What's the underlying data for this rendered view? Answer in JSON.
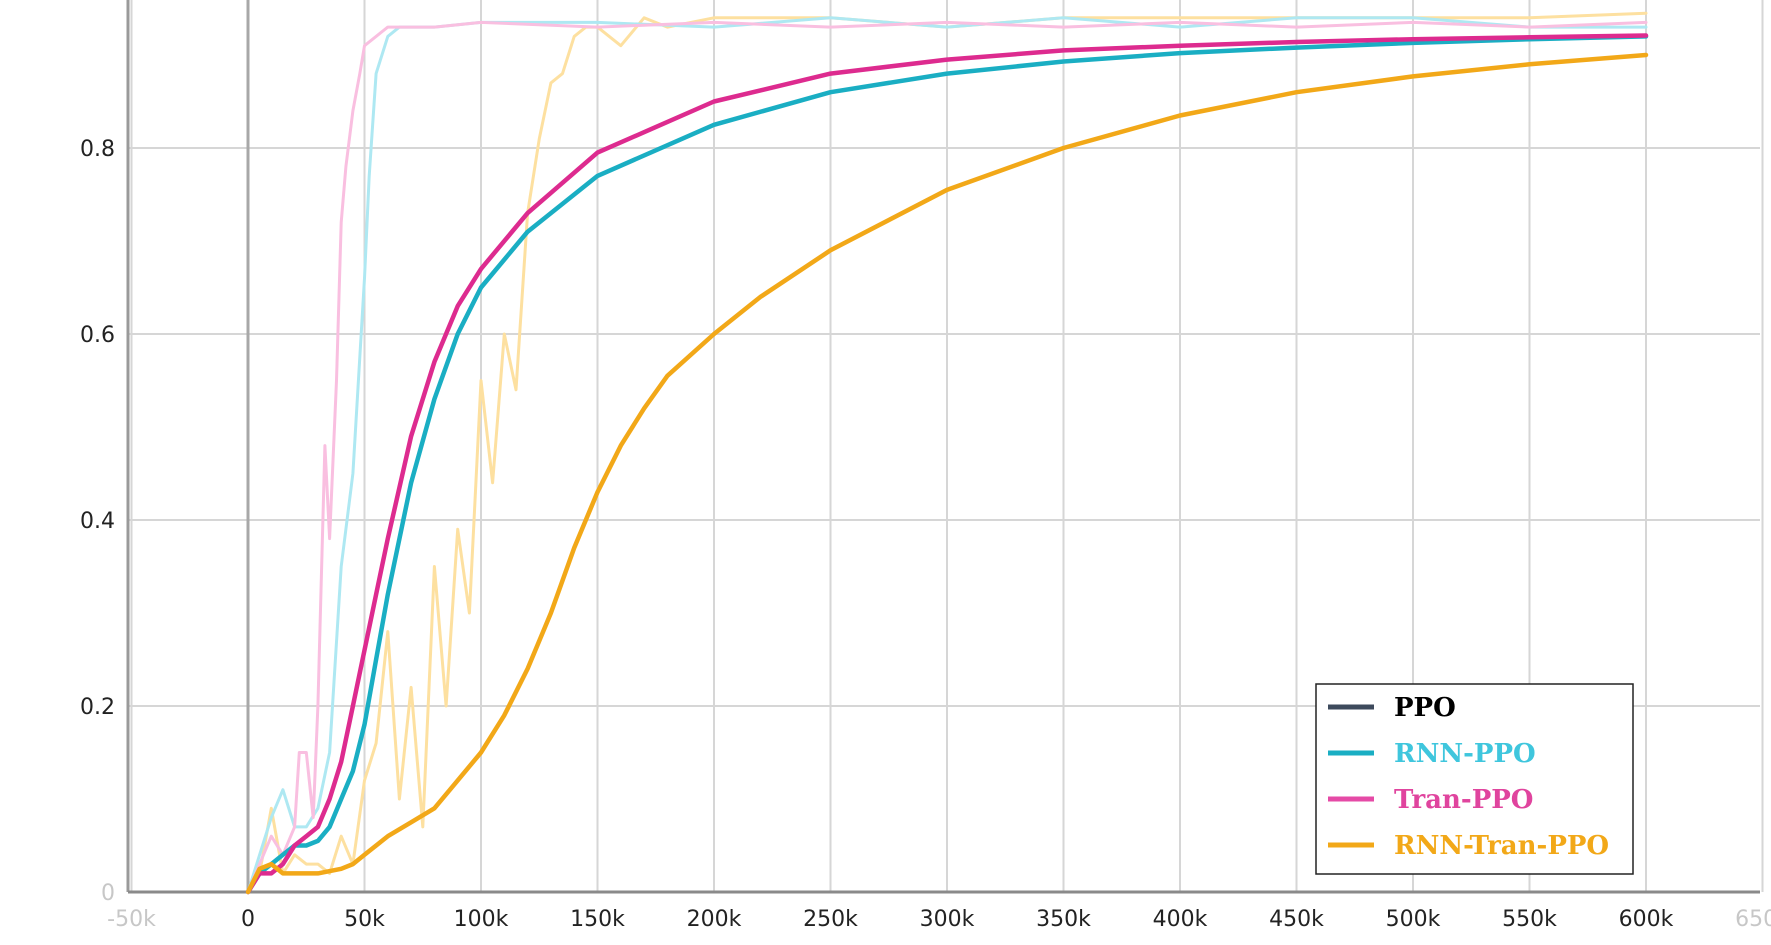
{
  "chart_data": {
    "type": "line",
    "title": "",
    "xlabel": "",
    "ylabel": "",
    "xlim": [
      -50000,
      650000
    ],
    "ylim": [
      0,
      0.955
    ],
    "grid": true,
    "legend_position": "bottom-right",
    "x_ticks": [
      {
        "value": -50000,
        "label": "-50k",
        "faint": true
      },
      {
        "value": 0,
        "label": "0"
      },
      {
        "value": 50000,
        "label": "50k"
      },
      {
        "value": 100000,
        "label": "100k"
      },
      {
        "value": 150000,
        "label": "150k"
      },
      {
        "value": 200000,
        "label": "200k"
      },
      {
        "value": 250000,
        "label": "250k"
      },
      {
        "value": 300000,
        "label": "300k"
      },
      {
        "value": 350000,
        "label": "350k"
      },
      {
        "value": 400000,
        "label": "400k"
      },
      {
        "value": 450000,
        "label": "450k"
      },
      {
        "value": 500000,
        "label": "500k"
      },
      {
        "value": 550000,
        "label": "550k"
      },
      {
        "value": 600000,
        "label": "600k"
      },
      {
        "value": 650000,
        "label": "650k",
        "faint": true
      }
    ],
    "y_ticks": [
      {
        "value": 0,
        "label": "0",
        "faint": true
      },
      {
        "value": 0.2,
        "label": "0.2"
      },
      {
        "value": 0.4,
        "label": "0.4"
      },
      {
        "value": 0.6,
        "label": "0.6"
      },
      {
        "value": 0.8,
        "label": "0.8"
      }
    ],
    "legend": [
      {
        "label": "PPO",
        "color": "#3d4a5c",
        "text_color": "#000000"
      },
      {
        "label": "RNN-PPO",
        "color": "#1aaec3",
        "text_color": "#3fc6dd"
      },
      {
        "label": "Tran-PPO",
        "color": "#e54aa6",
        "text_color": "#e0449e"
      },
      {
        "label": "RNN-Tran-PPO",
        "color": "#f2a818",
        "text_color": "#f2a818"
      }
    ],
    "series": [
      {
        "name": "RNN-Tran-PPO",
        "role": "raw",
        "color": "#fde0a0",
        "x": [
          0,
          5000,
          10000,
          15000,
          20000,
          25000,
          30000,
          35000,
          40000,
          45000,
          50000,
          55000,
          60000,
          65000,
          70000,
          75000,
          80000,
          85000,
          90000,
          95000,
          100000,
          105000,
          110000,
          115000,
          120000,
          125000,
          130000,
          135000,
          140000,
          145000,
          150000,
          160000,
          170000,
          180000,
          200000,
          250000,
          300000,
          350000,
          400000,
          450000,
          500000,
          550000,
          600000
        ],
        "y": [
          0.0,
          0.02,
          0.09,
          0.02,
          0.04,
          0.03,
          0.03,
          0.02,
          0.06,
          0.03,
          0.12,
          0.16,
          0.28,
          0.1,
          0.22,
          0.07,
          0.35,
          0.2,
          0.39,
          0.3,
          0.55,
          0.44,
          0.6,
          0.54,
          0.73,
          0.81,
          0.87,
          0.88,
          0.92,
          0.93,
          0.93,
          0.91,
          0.94,
          0.93,
          0.94,
          0.94,
          0.93,
          0.94,
          0.94,
          0.94,
          0.94,
          0.94,
          0.945
        ]
      },
      {
        "name": "RNN-PPO",
        "role": "raw",
        "color": "#aee8f2",
        "x": [
          0,
          5000,
          10000,
          15000,
          20000,
          25000,
          30000,
          35000,
          40000,
          45000,
          50000,
          52000,
          55000,
          60000,
          65000,
          70000,
          80000,
          100000,
          150000,
          200000,
          250000,
          300000,
          350000,
          400000,
          450000,
          500000,
          550000,
          600000
        ],
        "y": [
          0.0,
          0.04,
          0.08,
          0.11,
          0.07,
          0.07,
          0.09,
          0.15,
          0.35,
          0.45,
          0.66,
          0.77,
          0.88,
          0.92,
          0.93,
          0.93,
          0.93,
          0.935,
          0.935,
          0.93,
          0.94,
          0.93,
          0.94,
          0.93,
          0.94,
          0.94,
          0.93,
          0.93
        ]
      },
      {
        "name": "Tran-PPO",
        "role": "raw",
        "color": "#f9bfe0",
        "x": [
          0,
          5000,
          10000,
          15000,
          20000,
          22000,
          25000,
          28000,
          30000,
          33000,
          35000,
          38000,
          40000,
          42000,
          45000,
          48000,
          50000,
          55000,
          60000,
          80000,
          100000,
          150000,
          200000,
          250000,
          300000,
          350000,
          400000,
          450000,
          500000,
          550000,
          600000
        ],
        "y": [
          0.0,
          0.03,
          0.06,
          0.04,
          0.07,
          0.15,
          0.15,
          0.08,
          0.2,
          0.48,
          0.38,
          0.55,
          0.72,
          0.78,
          0.84,
          0.88,
          0.91,
          0.92,
          0.93,
          0.93,
          0.935,
          0.93,
          0.935,
          0.93,
          0.935,
          0.93,
          0.935,
          0.93,
          0.935,
          0.93,
          0.935
        ]
      },
      {
        "name": "RNN-PPO",
        "role": "smoothed",
        "color": "#1aaec3",
        "x": [
          0,
          5000,
          10000,
          15000,
          20000,
          25000,
          30000,
          35000,
          40000,
          45000,
          50000,
          55000,
          60000,
          70000,
          80000,
          90000,
          100000,
          120000,
          150000,
          200000,
          250000,
          300000,
          350000,
          400000,
          450000,
          500000,
          550000,
          600000
        ],
        "y": [
          0.0,
          0.02,
          0.03,
          0.04,
          0.05,
          0.05,
          0.055,
          0.07,
          0.1,
          0.13,
          0.18,
          0.25,
          0.32,
          0.44,
          0.53,
          0.6,
          0.65,
          0.71,
          0.77,
          0.825,
          0.86,
          0.88,
          0.893,
          0.902,
          0.908,
          0.913,
          0.917,
          0.92
        ]
      },
      {
        "name": "Tran-PPO",
        "role": "smoothed",
        "color": "#dd2b8f",
        "x": [
          0,
          5000,
          10000,
          15000,
          20000,
          25000,
          30000,
          35000,
          40000,
          45000,
          50000,
          55000,
          60000,
          70000,
          80000,
          90000,
          100000,
          120000,
          150000,
          200000,
          250000,
          300000,
          350000,
          400000,
          450000,
          500000,
          550000,
          600000
        ],
        "y": [
          0.0,
          0.02,
          0.02,
          0.03,
          0.05,
          0.06,
          0.07,
          0.1,
          0.14,
          0.2,
          0.26,
          0.32,
          0.38,
          0.49,
          0.57,
          0.63,
          0.67,
          0.73,
          0.795,
          0.85,
          0.88,
          0.895,
          0.905,
          0.91,
          0.914,
          0.917,
          0.919,
          0.921
        ]
      },
      {
        "name": "RNN-Tran-PPO",
        "role": "smoothed",
        "color": "#f2a818",
        "x": [
          0,
          5000,
          10000,
          15000,
          20000,
          25000,
          30000,
          40000,
          45000,
          50000,
          60000,
          70000,
          80000,
          90000,
          100000,
          110000,
          120000,
          130000,
          140000,
          150000,
          160000,
          170000,
          180000,
          200000,
          220000,
          250000,
          300000,
          350000,
          400000,
          450000,
          500000,
          550000,
          600000
        ],
        "y": [
          0.0,
          0.025,
          0.03,
          0.02,
          0.02,
          0.02,
          0.02,
          0.025,
          0.03,
          0.04,
          0.06,
          0.075,
          0.09,
          0.12,
          0.15,
          0.19,
          0.24,
          0.3,
          0.37,
          0.43,
          0.48,
          0.52,
          0.555,
          0.6,
          0.64,
          0.69,
          0.755,
          0.8,
          0.835,
          0.86,
          0.877,
          0.89,
          0.9
        ]
      }
    ]
  }
}
